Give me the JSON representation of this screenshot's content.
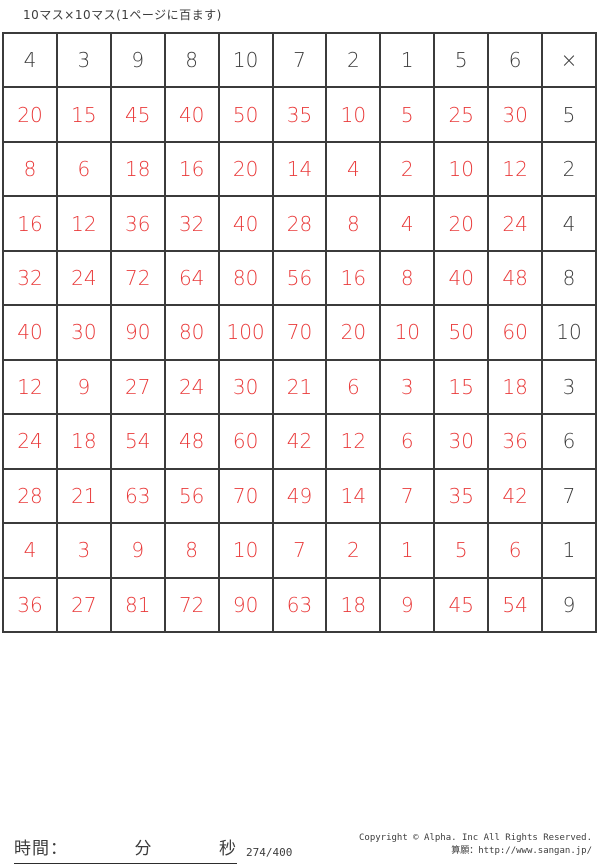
{
  "page": {
    "title_label": "10マス×10マス(1ページに百ます)"
  },
  "grid": {
    "header": [
      "4",
      "3",
      "9",
      "8",
      "10",
      "7",
      "2",
      "1",
      "5",
      "6",
      "×"
    ],
    "rows": [
      {
        "values": [
          "20",
          "15",
          "45",
          "40",
          "50",
          "35",
          "10",
          "5",
          "25",
          "30"
        ],
        "multiplier": "5"
      },
      {
        "values": [
          "8",
          "6",
          "18",
          "16",
          "20",
          "14",
          "4",
          "2",
          "10",
          "12"
        ],
        "multiplier": "2"
      },
      {
        "values": [
          "16",
          "12",
          "36",
          "32",
          "40",
          "28",
          "8",
          "4",
          "20",
          "24"
        ],
        "multiplier": "4"
      },
      {
        "values": [
          "32",
          "24",
          "72",
          "64",
          "80",
          "56",
          "16",
          "8",
          "40",
          "48"
        ],
        "multiplier": "8"
      },
      {
        "values": [
          "40",
          "30",
          "90",
          "80",
          "100",
          "70",
          "20",
          "10",
          "50",
          "60"
        ],
        "multiplier": "10"
      },
      {
        "values": [
          "12",
          "9",
          "27",
          "24",
          "30",
          "21",
          "6",
          "3",
          "15",
          "18"
        ],
        "multiplier": "3"
      },
      {
        "values": [
          "24",
          "18",
          "54",
          "48",
          "60",
          "42",
          "12",
          "6",
          "30",
          "36"
        ],
        "multiplier": "6"
      },
      {
        "values": [
          "28",
          "21",
          "63",
          "56",
          "70",
          "49",
          "14",
          "7",
          "35",
          "42"
        ],
        "multiplier": "7"
      },
      {
        "values": [
          "4",
          "3",
          "9",
          "8",
          "10",
          "7",
          "2",
          "1",
          "5",
          "6"
        ],
        "multiplier": "1"
      },
      {
        "values": [
          "36",
          "27",
          "81",
          "72",
          "90",
          "63",
          "18",
          "9",
          "45",
          "54"
        ],
        "multiplier": "9"
      }
    ]
  },
  "footer": {
    "time_label": "時間：",
    "minutes_label": "分",
    "seconds_label": "秒",
    "page_number": "274/400",
    "copyright_line1": "Copyright © Alpha. Inc All Rights Reserved.",
    "copyright_line2": "算願：http://www.sangan.jp/"
  },
  "colors": {
    "answer_red": "#e93a3a",
    "ink": "#3c3c3c",
    "grid_line": "#3b3b3b"
  }
}
